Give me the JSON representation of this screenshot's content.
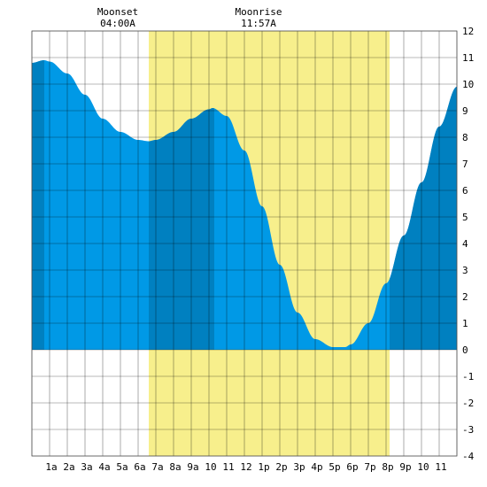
{
  "chart_data": {
    "type": "area",
    "title": "",
    "xlabel": "",
    "ylabel": "",
    "x_unit": "hour",
    "xlim": [
      0,
      24
    ],
    "ylim": [
      -4,
      12
    ],
    "grid": true,
    "x_tick_labels": [
      {
        "hour": 1,
        "label": "1a"
      },
      {
        "hour": 2,
        "label": "2a"
      },
      {
        "hour": 3,
        "label": "3a"
      },
      {
        "hour": 4,
        "label": "4a"
      },
      {
        "hour": 5,
        "label": "5a"
      },
      {
        "hour": 6,
        "label": "6a"
      },
      {
        "hour": 7,
        "label": "7a"
      },
      {
        "hour": 8,
        "label": "8a"
      },
      {
        "hour": 9,
        "label": "9a"
      },
      {
        "hour": 10,
        "label": "10"
      },
      {
        "hour": 11,
        "label": "11"
      },
      {
        "hour": 12,
        "label": "12"
      },
      {
        "hour": 13,
        "label": "1p"
      },
      {
        "hour": 14,
        "label": "2p"
      },
      {
        "hour": 15,
        "label": "3p"
      },
      {
        "hour": 16,
        "label": "4p"
      },
      {
        "hour": 17,
        "label": "5p"
      },
      {
        "hour": 18,
        "label": "6p"
      },
      {
        "hour": 19,
        "label": "7p"
      },
      {
        "hour": 20,
        "label": "8p"
      },
      {
        "hour": 21,
        "label": "9p"
      },
      {
        "hour": 22,
        "label": "10"
      },
      {
        "hour": 23,
        "label": "11"
      }
    ],
    "y_ticks": [
      -4,
      -3,
      -2,
      -1,
      0,
      1,
      2,
      3,
      4,
      5,
      6,
      7,
      8,
      9,
      10,
      11,
      12
    ],
    "tide": {
      "hours": [
        0,
        0.7,
        1,
        2,
        3,
        4,
        5,
        6,
        6.6,
        7,
        8,
        9,
        10,
        10.2,
        11,
        12,
        13,
        14,
        15,
        16,
        17,
        17.7,
        18,
        19,
        20,
        21,
        22,
        23,
        24
      ],
      "heights": [
        10.8,
        10.9,
        10.85,
        10.4,
        9.6,
        8.7,
        8.2,
        7.9,
        7.85,
        7.9,
        8.2,
        8.7,
        9.05,
        9.1,
        8.8,
        7.5,
        5.4,
        3.2,
        1.4,
        0.4,
        0.1,
        0.1,
        0.2,
        1.0,
        2.5,
        4.3,
        6.3,
        8.4,
        9.9
      ]
    },
    "daylight": {
      "start_hour": 6.6,
      "end_hour": 20.2
    },
    "moon_phase_band": {
      "start_hour": 6.6,
      "end_hour": 10.3
    },
    "colors": {
      "tide_light": "#0099e6",
      "tide_dark": "#0080c0",
      "daylight": "#f7ef8c",
      "grid": "#000000",
      "background": "#ffffff"
    }
  },
  "moon_events": [
    {
      "name": "Moonset",
      "time": "04:00A",
      "hour": 4.0
    },
    {
      "name": "Moonrise",
      "time": "11:57A",
      "hour": 11.95
    }
  ]
}
